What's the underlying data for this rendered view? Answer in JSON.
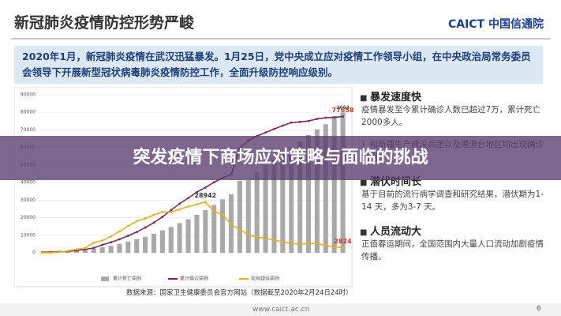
{
  "slide": {
    "title": "新冠肺炎疫情防控形势严峻",
    "logo": "CAICT 中国信通院",
    "intro": "2020年1月，新冠肺炎疫情在武汉迅猛暴发。1月25日，党中央成立应对疫情工作领导小组，在中央政治局常务委员会领导下开展新型冠状病毒肺炎疫情防控工作，全面升级防控响应级别。",
    "bullets": [
      {
        "heading": "暴发速度快",
        "text": "疫情暴发至今累计确诊人数已超过7万，累计死亡2000多人。"
      },
      {
        "heading": "",
        "text": "）和新疆生产建设兵团以及港澳台地区均出现确诊病例。"
      },
      {
        "heading": "潜伏时间长",
        "text": "基于目前的流行病学调查和研究结果，潜伏期为1-14 天，多为3-7 天。"
      },
      {
        "heading": "人员流动大",
        "text": "正值春运期间，全国范围内大量人口流动加剧疫情传播。"
      }
    ],
    "source": "数据来源：国家卫生健康委员会官方网站（数据截至2020年2月24日24时）",
    "url": "www.caict.ac.cn",
    "page": "6"
  },
  "banner": "突发疫情下商场应对策略与面临的挑战",
  "chart_data": {
    "type": "bar",
    "categories": [
      null,
      null,
      null,
      null,
      null,
      null,
      null,
      null,
      null,
      null,
      null,
      null,
      null,
      null,
      null,
      null,
      null,
      null,
      null,
      null,
      null,
      null,
      null,
      null,
      null,
      null,
      null,
      null,
      null,
      null,
      null,
      null,
      null,
      null,
      null,
      null
    ],
    "ylim": [
      0,
      90000
    ],
    "yticks": [
      0,
      10000,
      20000,
      30000,
      40000,
      50000,
      60000,
      70000,
      80000,
      90000
    ],
    "y2lim": [
      0,
      3000
    ],
    "grid": true,
    "series": [
      {
        "name": "累计死亡病例",
        "type": "bar",
        "axis": "y2",
        "color": "#a9a9a9",
        "values": [
          6,
          9,
          17,
          25,
          41,
          56,
          80,
          106,
          132,
          170,
          213,
          259,
          304,
          361,
          425,
          490,
          563,
          636,
          722,
          811,
          908,
          1016,
          1113,
          1367,
          1380,
          1523,
          1665,
          1770,
          1868,
          2004,
          2118,
          2236,
          2345,
          2442,
          2592,
          2663
        ]
      },
      {
        "name": "累计确诊病例",
        "type": "line",
        "color": "#7a2a57",
        "values": [
          291,
          440,
          571,
          830,
          1287,
          1975,
          2744,
          4515,
          5974,
          7711,
          9692,
          11791,
          14380,
          17205,
          20438,
          24324,
          28018,
          31161,
          34546,
          37198,
          40171,
          42638,
          44653,
          59804,
          63851,
          66492,
          68500,
          70548,
          72436,
          74185,
          74576,
          75077,
          76288,
          76936,
          77150,
          77658
        ]
      },
      {
        "name": "现有疑似病例",
        "type": "line",
        "color": "#e3b020",
        "values": [
          54,
          37,
          393,
          1072,
          1965,
          2684,
          5794,
          6973,
          9239,
          12167,
          15238,
          17988,
          19544,
          21558,
          23214,
          23260,
          24702,
          26359,
          27657,
          28942,
          23589,
          21675,
          16067,
          13435,
          10109,
          8969,
          8228,
          7264,
          6242,
          5248,
          4922,
          5206,
          5365,
          4148,
          3434,
          2824
        ]
      }
    ]
  }
}
